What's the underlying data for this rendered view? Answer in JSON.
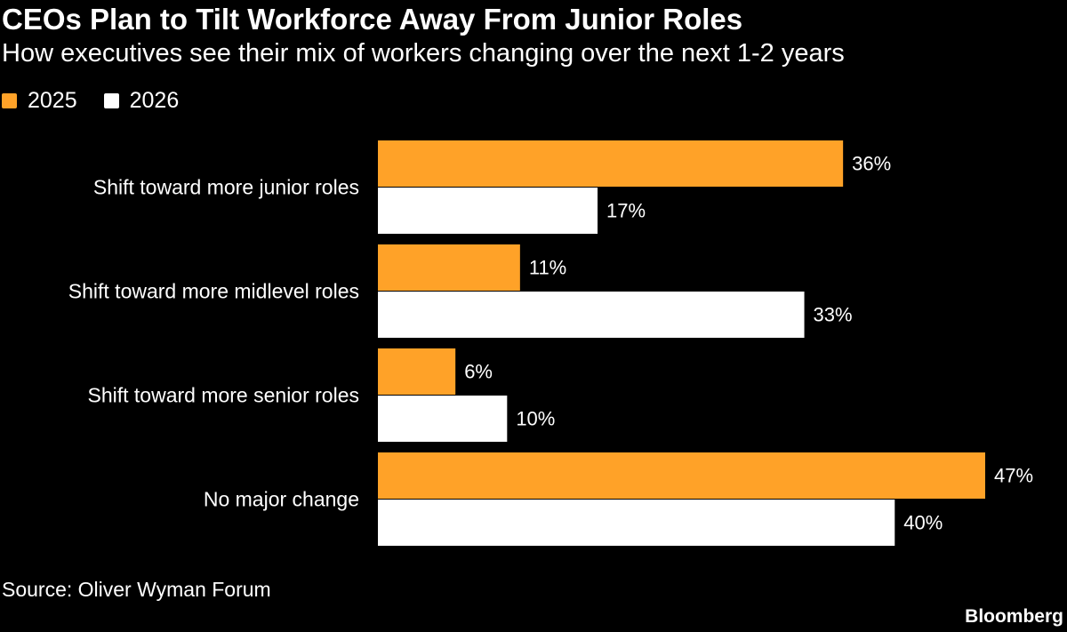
{
  "title": "CEOs Plan to Tilt Workforce Away From Junior Roles",
  "subtitle": "How executives see their mix of workers changing over the next 1-2 years",
  "legend": [
    {
      "label": "2025",
      "color": "#ffa228"
    },
    {
      "label": "2026",
      "color": "#ffffff"
    }
  ],
  "chart_data": {
    "type": "bar",
    "orientation": "horizontal",
    "categories": [
      "Shift toward more junior roles",
      "Shift toward more midlevel roles",
      "Shift toward more senior roles",
      "No major change"
    ],
    "series": [
      {
        "name": "2025",
        "color": "#ffa228",
        "values": [
          36,
          11,
          6,
          47
        ],
        "labels": [
          "36%",
          "11%",
          "6%",
          "47%"
        ]
      },
      {
        "name": "2026",
        "color": "#ffffff",
        "values": [
          17,
          33,
          10,
          40
        ],
        "labels": [
          "17%",
          "33%",
          "10%",
          "40%"
        ]
      }
    ],
    "unit": "%",
    "xlim": [
      0,
      47
    ],
    "grid": false,
    "legend_position": "top-left"
  },
  "source": "Source: Oliver Wyman Forum",
  "brand": "Bloomberg"
}
